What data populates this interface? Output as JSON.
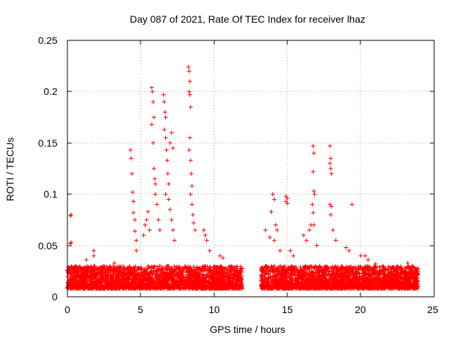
{
  "chart_data": {
    "type": "scatter",
    "title": "Day 087 of 2021, Rate Of TEC Index for receiver lhaz",
    "xlabel": "GPS time / hours",
    "ylabel": "ROTI / TECUs",
    "xlim": [
      0,
      25
    ],
    "ylim": [
      0,
      0.25
    ],
    "xticks": [
      "0",
      "5",
      "10",
      "15",
      "20",
      "25"
    ],
    "yticks": [
      "0",
      "0.05",
      "0.1",
      "0.15",
      "0.2",
      "0.25"
    ],
    "grid": true,
    "marker": "+",
    "series": [
      {
        "color": "#ff0000",
        "points": [
          [
            0.2,
            0.079
          ],
          [
            0.25,
            0.08
          ],
          [
            0.2,
            0.052
          ],
          [
            0.25,
            0.053
          ],
          [
            1.3,
            0.036
          ],
          [
            1.8,
            0.045
          ],
          [
            1.8,
            0.04
          ],
          [
            3.2,
            0.033
          ],
          [
            4.3,
            0.143
          ],
          [
            4.35,
            0.135
          ],
          [
            4.4,
            0.12
          ],
          [
            4.45,
            0.102
          ],
          [
            4.5,
            0.093
          ],
          [
            4.5,
            0.082
          ],
          [
            4.6,
            0.075
          ],
          [
            4.6,
            0.064
          ],
          [
            4.7,
            0.055
          ],
          [
            4.7,
            0.045
          ],
          [
            5.2,
            0.06
          ],
          [
            5.3,
            0.07
          ],
          [
            5.4,
            0.075
          ],
          [
            5.5,
            0.083
          ],
          [
            5.6,
            0.065
          ],
          [
            5.75,
            0.204
          ],
          [
            5.8,
            0.2
          ],
          [
            5.85,
            0.19
          ],
          [
            5.9,
            0.175
          ],
          [
            5.75,
            0.168
          ],
          [
            5.85,
            0.15
          ],
          [
            5.9,
            0.125
          ],
          [
            5.95,
            0.115
          ],
          [
            6.0,
            0.11
          ],
          [
            6.0,
            0.1
          ],
          [
            6.1,
            0.09
          ],
          [
            6.2,
            0.075
          ],
          [
            6.3,
            0.065
          ],
          [
            6.55,
            0.197
          ],
          [
            6.6,
            0.19
          ],
          [
            6.65,
            0.18
          ],
          [
            6.7,
            0.175
          ],
          [
            6.6,
            0.163
          ],
          [
            6.7,
            0.155
          ],
          [
            6.75,
            0.143
          ],
          [
            6.8,
            0.133
          ],
          [
            6.85,
            0.12
          ],
          [
            6.9,
            0.11
          ],
          [
            6.7,
            0.1
          ],
          [
            6.9,
            0.095
          ],
          [
            7.0,
            0.085
          ],
          [
            7.1,
            0.075
          ],
          [
            7.2,
            0.065
          ],
          [
            7.3,
            0.055
          ],
          [
            7.1,
            0.16
          ],
          [
            7.0,
            0.15
          ],
          [
            7.2,
            0.145
          ],
          [
            8.25,
            0.224
          ],
          [
            8.3,
            0.22
          ],
          [
            8.35,
            0.21
          ],
          [
            8.3,
            0.2
          ],
          [
            8.35,
            0.197
          ],
          [
            8.4,
            0.185
          ],
          [
            8.35,
            0.155
          ],
          [
            8.3,
            0.143
          ],
          [
            8.4,
            0.133
          ],
          [
            8.45,
            0.12
          ],
          [
            8.5,
            0.108
          ],
          [
            8.4,
            0.1
          ],
          [
            8.5,
            0.09
          ],
          [
            8.55,
            0.08
          ],
          [
            8.6,
            0.072
          ],
          [
            8.7,
            0.065
          ],
          [
            9.3,
            0.065
          ],
          [
            9.4,
            0.06
          ],
          [
            9.5,
            0.055
          ],
          [
            9.7,
            0.045
          ],
          [
            10.4,
            0.04
          ],
          [
            10.6,
            0.038
          ],
          [
            11.7,
            0.022
          ],
          [
            13.5,
            0.065
          ],
          [
            13.8,
            0.058
          ],
          [
            13.9,
            0.083
          ],
          [
            14.0,
            0.1
          ],
          [
            14.1,
            0.095
          ],
          [
            14.2,
            0.07
          ],
          [
            14.3,
            0.065
          ],
          [
            14.1,
            0.055
          ],
          [
            14.5,
            0.045
          ],
          [
            14.9,
            0.098
          ],
          [
            15.0,
            0.096
          ],
          [
            14.9,
            0.093
          ],
          [
            15.0,
            0.091
          ],
          [
            15.2,
            0.045
          ],
          [
            15.4,
            0.04
          ],
          [
            16.1,
            0.06
          ],
          [
            16.3,
            0.055
          ],
          [
            16.5,
            0.065
          ],
          [
            16.6,
            0.07
          ],
          [
            16.75,
            0.147
          ],
          [
            16.8,
            0.14
          ],
          [
            16.75,
            0.122
          ],
          [
            16.8,
            0.103
          ],
          [
            16.85,
            0.1
          ],
          [
            16.7,
            0.09
          ],
          [
            16.75,
            0.082
          ],
          [
            16.8,
            0.07
          ],
          [
            17.0,
            0.05
          ],
          [
            17.9,
            0.147
          ],
          [
            17.95,
            0.135
          ],
          [
            17.9,
            0.13
          ],
          [
            17.95,
            0.125
          ],
          [
            18.0,
            0.12
          ],
          [
            17.9,
            0.09
          ],
          [
            18.0,
            0.088
          ],
          [
            17.95,
            0.08
          ],
          [
            18.1,
            0.065
          ],
          [
            18.3,
            0.055
          ],
          [
            19.4,
            0.09
          ],
          [
            19.0,
            0.048
          ],
          [
            19.2,
            0.045
          ],
          [
            20.0,
            0.04
          ],
          [
            20.3,
            0.04
          ],
          [
            20.5,
            0.036
          ],
          [
            21.0,
            0.032
          ],
          [
            21.5,
            0.03
          ],
          [
            22.0,
            0.029
          ],
          [
            22.5,
            0.027
          ],
          [
            23.2,
            0.033
          ],
          [
            23.5,
            0.03
          ]
        ],
        "baseline_segments": [
          {
            "x": [
              0,
              11.9
            ],
            "y": [
              0.008,
              0.03
            ]
          },
          {
            "x": [
              13.2,
              23.9
            ],
            "y": [
              0.008,
              0.03
            ]
          }
        ]
      }
    ]
  }
}
